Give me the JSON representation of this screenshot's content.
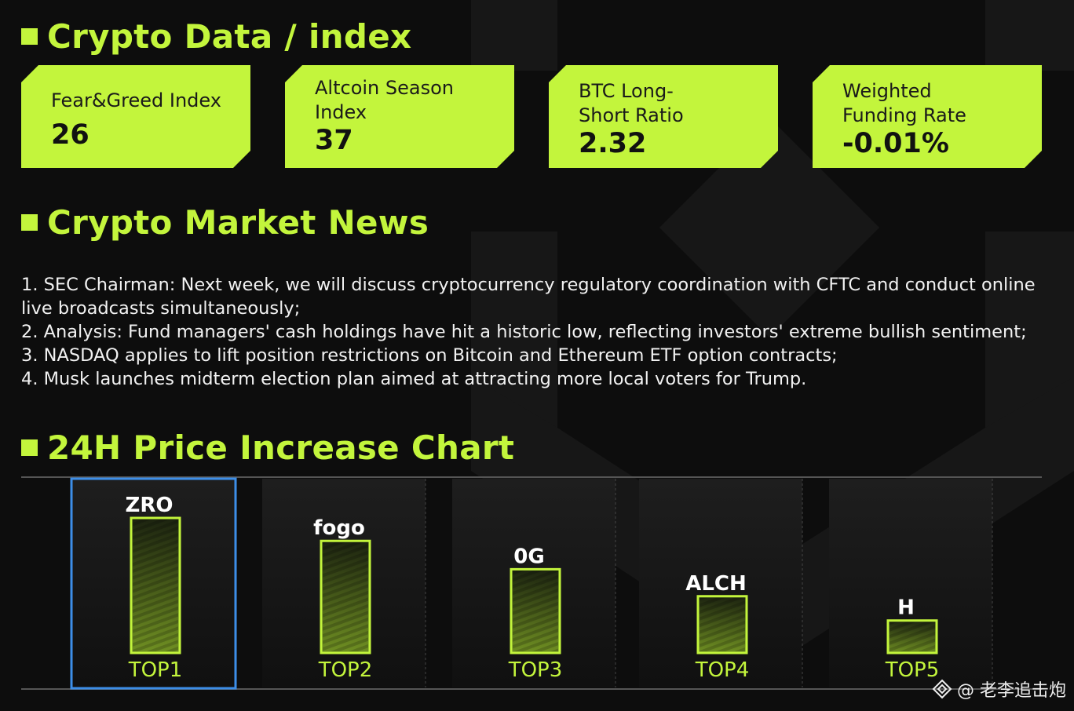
{
  "sections": {
    "index_title": "Crypto Data / index",
    "news_title": "Crypto Market News",
    "chart_title": "24H Price Increase Chart"
  },
  "cards": [
    {
      "label": "Fear&Greed Index",
      "value": "26"
    },
    {
      "label": "Altcoin Season Index",
      "value": "37"
    },
    {
      "label": "BTC Long-Short Ratio",
      "value": "2.32"
    },
    {
      "label": "Weighted Funding Rate",
      "value": "-0.01%"
    }
  ],
  "news": [
    "1. SEC Chairman: Next week, we will discuss cryptocurrency regulatory coordination with CFTC and conduct online live broadcasts simultaneously;",
    "2. Analysis: Fund managers' cash holdings have hit a historic low, reflecting investors' extreme bullish sentiment;",
    "3. NASDAQ applies to lift position restrictions on Bitcoin and Ethereum ETF option contracts;",
    "4. Musk launches midterm election plan aimed at attracting more local voters for Trump."
  ],
  "chart_data": {
    "type": "bar",
    "title": "24H Price Increase Chart",
    "categories": [
      "TOP1",
      "TOP2",
      "TOP3",
      "TOP4",
      "TOP5"
    ],
    "bar_labels": [
      "ZRO",
      "fogo",
      "0G",
      "ALCH",
      "H"
    ],
    "values": [
      100,
      83,
      62,
      42,
      24
    ],
    "xlabel": "",
    "ylabel": "",
    "ylim": [
      0,
      100
    ],
    "grid": false,
    "legend": "none",
    "highlighted": "TOP1"
  },
  "colors": {
    "accent": "#c3f53c",
    "background": "#0d0d0d",
    "highlight_border": "#3d8ee8"
  },
  "watermark": "@ 老李追击炮"
}
